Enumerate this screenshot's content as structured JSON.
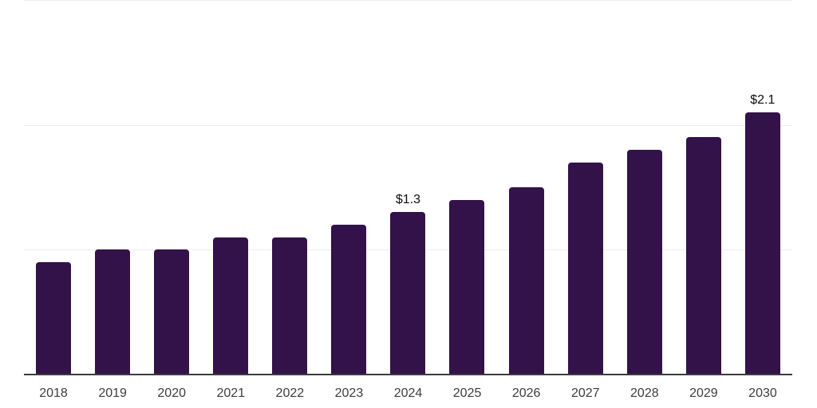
{
  "chart_data": {
    "type": "bar",
    "title": "",
    "xlabel": "",
    "ylabel": "",
    "categories": [
      "2018",
      "2019",
      "2020",
      "2021",
      "2022",
      "2023",
      "2024",
      "2025",
      "2026",
      "2027",
      "2028",
      "2029",
      "2030"
    ],
    "values": [
      0.9,
      1.0,
      1.0,
      1.1,
      1.1,
      1.2,
      1.3,
      1.4,
      1.5,
      1.7,
      1.8,
      1.9,
      2.1
    ],
    "data_labels": {
      "2024": "$1.3",
      "2030": "$2.1"
    },
    "ylim": [
      0,
      3
    ],
    "gridline_values": [
      1,
      2,
      3
    ],
    "grid": "horizontal",
    "legend": "none",
    "colors": {
      "bar": "#33124A",
      "gridline": "#ededed",
      "axis": "#3c3c3c",
      "tick_label": "#3d3d3d",
      "data_label": "#0d0d0d",
      "background": "#ffffff"
    }
  }
}
